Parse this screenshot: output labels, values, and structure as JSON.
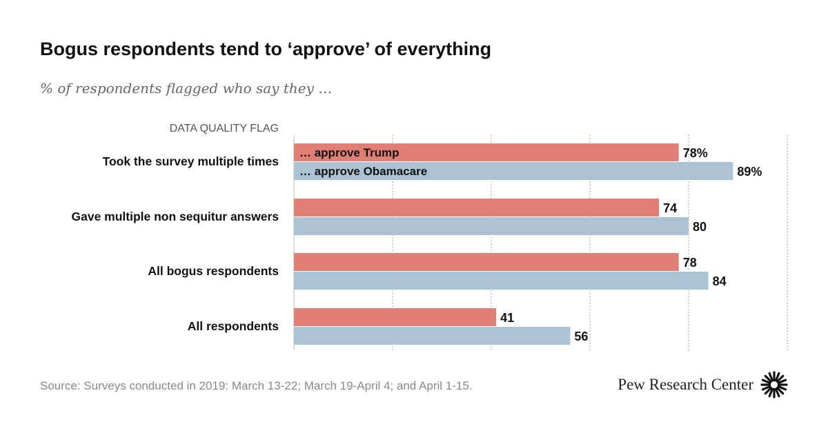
{
  "title": "Bogus respondents tend to ‘approve’ of everything",
  "subtitle": "% of respondents flagged who say they …",
  "source": "Source: Surveys conducted in 2019: March 13-22; March 19-April 4; and April 1-15.",
  "brand": "Pew Research Center",
  "logo_icon": "pew-sunburst-icon",
  "colors": {
    "trump": "#e07f73",
    "obamacare": "#abc3d2",
    "grid": "#999999",
    "axis": "#bbbbbb",
    "text": "#111111"
  },
  "chart_data": {
    "type": "bar",
    "orientation": "horizontal",
    "category_header": "DATA QUALITY FLAG",
    "categories": [
      "Took the survey multiple times",
      "Gave multiple non sequitur answers",
      "All bogus respondents",
      "All respondents"
    ],
    "series": [
      {
        "name": "… approve Trump",
        "values": [
          78,
          74,
          78,
          41
        ],
        "value_labels": [
          "78%",
          "74",
          "78",
          "41"
        ]
      },
      {
        "name": "… approve Obamacare",
        "values": [
          89,
          80,
          84,
          56
        ],
        "value_labels": [
          "89%",
          "80",
          "84",
          "56"
        ]
      }
    ],
    "xlim": [
      0,
      100
    ],
    "grid": true,
    "legend": "inside first category bars"
  }
}
